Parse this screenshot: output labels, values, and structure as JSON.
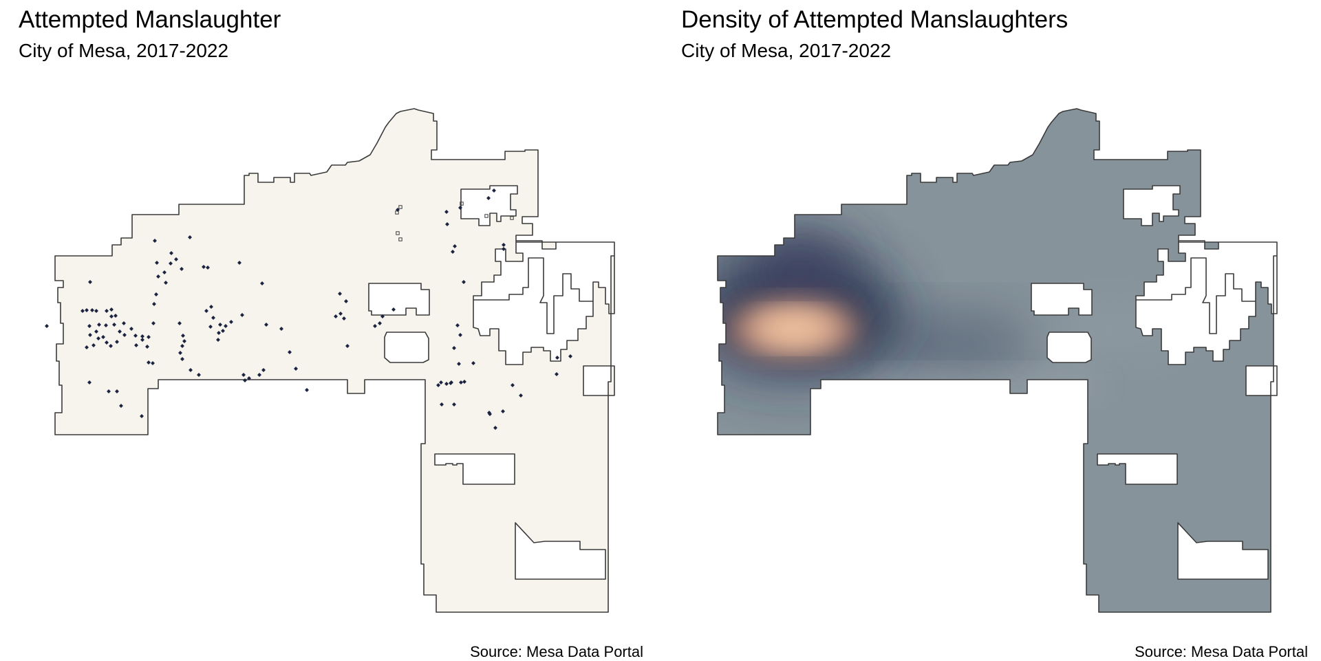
{
  "left_panel": {
    "title": "Attempted Manslaughter",
    "subtitle": "City of Mesa, 2017-2022",
    "source": "Source: Mesa Data Portal",
    "fill_color": "#f6f4ec",
    "border_color": "#3a3a3a",
    "point_color": "#1c2340"
  },
  "right_panel": {
    "title": "Density of Attempted Manslaughters",
    "subtitle": "City of Mesa, 2017-2022",
    "source": "Source: Mesa Data Portal",
    "fill_color": "#87939b",
    "border_color": "#3a3a3a",
    "density_colors": [
      "#1f2a4a",
      "#3b3e5e",
      "#a36e66",
      "#e9b795",
      "#f4caa6"
    ]
  }
}
